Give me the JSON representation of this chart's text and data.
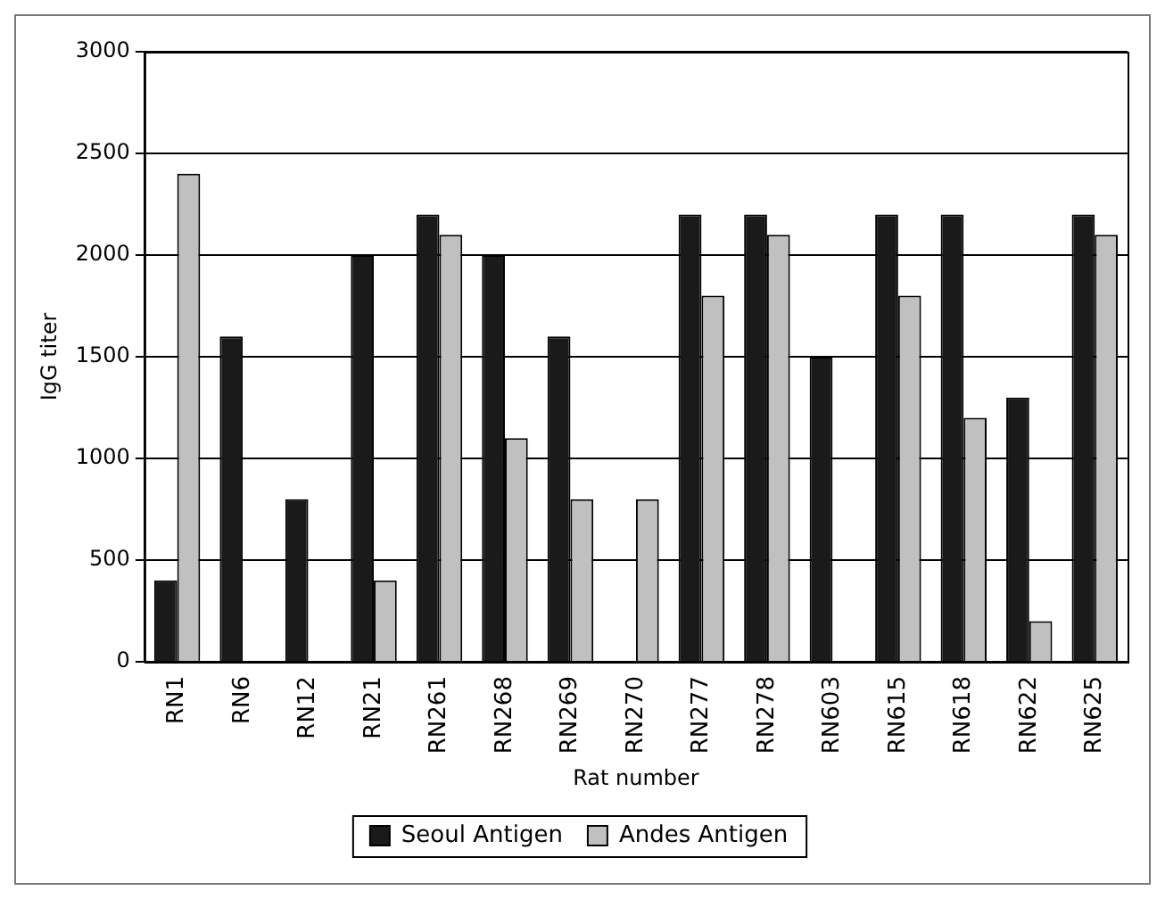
{
  "chart_data": {
    "type": "bar",
    "xlabel": "Rat number",
    "ylabel": "IgG titer",
    "categories": [
      "RN1",
      "RN6",
      "RN12",
      "RN21",
      "RN261",
      "RN268",
      "RN269",
      "RN270",
      "RN277",
      "RN278",
      "RN603",
      "RN615",
      "RN618",
      "RN622",
      "RN625"
    ],
    "series": [
      {
        "name": "Seoul Antigen",
        "color": "#1a1a1a",
        "values": [
          400,
          1600,
          800,
          2000,
          2200,
          2000,
          1600,
          null,
          2200,
          2200,
          1500,
          2200,
          2200,
          1300,
          2200
        ]
      },
      {
        "name": "Andes Antigen",
        "color": "#c0c0c0",
        "values": [
          2400,
          null,
          null,
          400,
          2100,
          1100,
          800,
          800,
          1800,
          2100,
          null,
          1800,
          1200,
          200,
          2100
        ]
      }
    ],
    "ylim": [
      0,
      3000
    ],
    "yticks": [
      0,
      500,
      1000,
      1500,
      2000,
      2500,
      3000
    ],
    "grid": "y",
    "legend": "bottom"
  }
}
